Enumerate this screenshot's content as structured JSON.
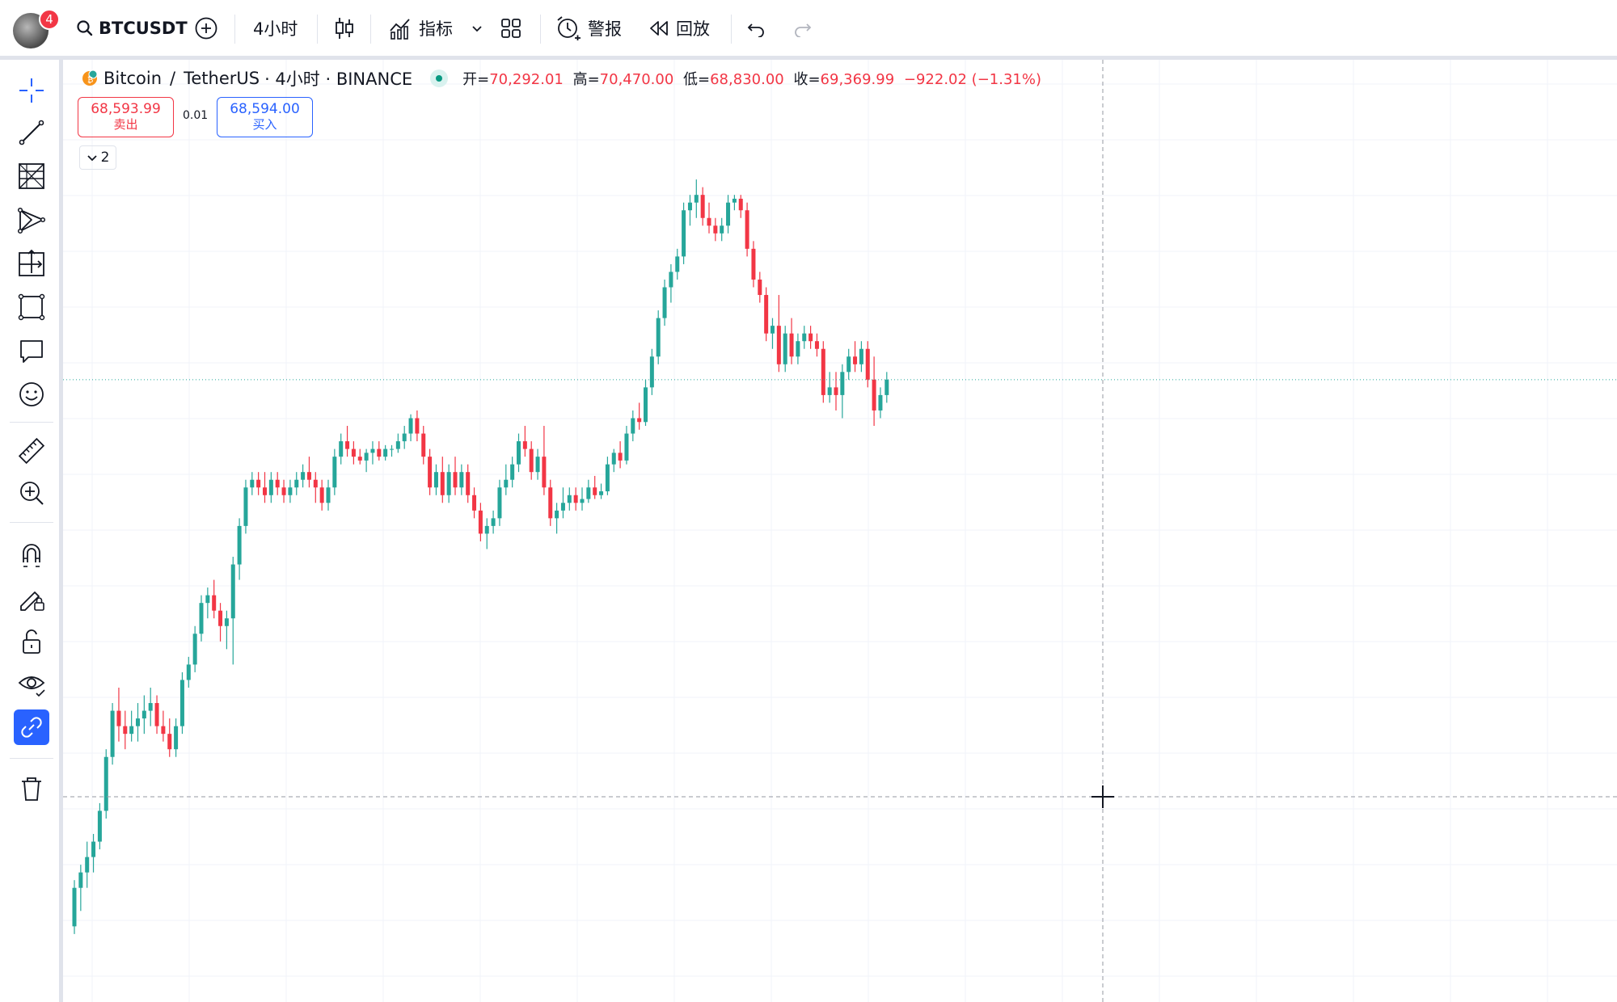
{
  "topbar": {
    "notification_count": "4",
    "symbol": "BTCUSDT",
    "interval": "4小时",
    "indicators_label": "指标",
    "alerts_label": "警报",
    "replay_label": "回放"
  },
  "legend": {
    "base": "Bitcoin",
    "slash": "/",
    "quote": "TetherUS",
    "interval_exchange": "· 4小时 · BINANCE",
    "open_label": "开=",
    "open": "70,292.01",
    "high_label": "高=",
    "high": "70,470.00",
    "low_label": "低=",
    "low": "68,830.00",
    "close_label": "收=",
    "close": "69,369.99",
    "change": "−922.02 (−1.31%)"
  },
  "trade": {
    "sell_price": "68,593.99",
    "sell_label": "卖出",
    "spread": "0.01",
    "buy_price": "68,594.00",
    "buy_label": "买入"
  },
  "indicators_collapsed_count": "2",
  "colors": {
    "up": "#26a69a",
    "down": "#f23645",
    "accent": "#2962ff"
  },
  "left_tools": [
    "crosshair-icon",
    "trend-line-icon",
    "fib-retracement-icon",
    "pattern-icon",
    "prediction-icon",
    "geometric-shapes-icon",
    "annotation-icon",
    "emoji-icon",
    "ruler-icon",
    "zoom-in-icon",
    "magnet-icon",
    "lock-drawing-icon",
    "lock-all-icon",
    "eye-icon",
    "link-icon",
    "trash-icon"
  ],
  "chart_data": {
    "type": "candlestick",
    "candles": [
      [
        65800,
        66400,
        65700,
        66300
      ],
      [
        66300,
        66600,
        66000,
        66500
      ],
      [
        66500,
        66900,
        66300,
        66700
      ],
      [
        66700,
        67000,
        66500,
        66900
      ],
      [
        66900,
        67400,
        66800,
        67300
      ],
      [
        67300,
        68100,
        67200,
        68000
      ],
      [
        68000,
        68700,
        67900,
        68600
      ],
      [
        68600,
        68900,
        68200,
        68400
      ],
      [
        68400,
        68600,
        68100,
        68300
      ],
      [
        68300,
        68600,
        68200,
        68400
      ],
      [
        68400,
        68700,
        68200,
        68500
      ],
      [
        68500,
        68800,
        68300,
        68600
      ],
      [
        68600,
        68900,
        68400,
        68700
      ],
      [
        68700,
        68800,
        68300,
        68400
      ],
      [
        68400,
        68600,
        68200,
        68300
      ],
      [
        68300,
        68500,
        68000,
        68100
      ],
      [
        68100,
        68500,
        68000,
        68400
      ],
      [
        68400,
        69100,
        68300,
        69000
      ],
      [
        69000,
        69300,
        68900,
        69200
      ],
      [
        69200,
        69700,
        69100,
        69600
      ],
      [
        69600,
        70100,
        69500,
        70000
      ],
      [
        70000,
        70200,
        69800,
        70100
      ],
      [
        70100,
        70300,
        69800,
        69900
      ],
      [
        69900,
        70000,
        69500,
        69700
      ],
      [
        69700,
        69900,
        69400,
        69800
      ],
      [
        69800,
        70600,
        69200,
        70500
      ],
      [
        70500,
        71100,
        70300,
        71000
      ],
      [
        71000,
        71600,
        70900,
        71500
      ],
      [
        71500,
        71700,
        71400,
        71600
      ],
      [
        71600,
        71700,
        71400,
        71500
      ],
      [
        71500,
        71700,
        71300,
        71400
      ],
      [
        71400,
        71700,
        71300,
        71600
      ],
      [
        71600,
        71700,
        71400,
        71500
      ],
      [
        71500,
        71600,
        71300,
        71400
      ],
      [
        71400,
        71600,
        71300,
        71500
      ],
      [
        71500,
        71700,
        71400,
        71600
      ],
      [
        71600,
        71800,
        71500,
        71700
      ],
      [
        71700,
        71900,
        71500,
        71600
      ],
      [
        71600,
        71700,
        71300,
        71500
      ],
      [
        71500,
        71600,
        71200,
        71300
      ],
      [
        71300,
        71600,
        71200,
        71500
      ],
      [
        71500,
        72000,
        71400,
        71900
      ],
      [
        71900,
        72200,
        71800,
        72100
      ],
      [
        72100,
        72300,
        71900,
        72000
      ],
      [
        72000,
        72100,
        71800,
        71900
      ],
      [
        71900,
        72000,
        71800,
        71850
      ],
      [
        71850,
        72000,
        71700,
        71950
      ],
      [
        71950,
        72100,
        71800,
        72000
      ],
      [
        72000,
        72100,
        71850,
        71900
      ],
      [
        71900,
        72050,
        71850,
        72000
      ],
      [
        72000,
        72050,
        71900,
        72000
      ],
      [
        72000,
        72200,
        71950,
        72100
      ],
      [
        72100,
        72300,
        72000,
        72200
      ],
      [
        72200,
        72450,
        72100,
        72400
      ],
      [
        72400,
        72500,
        72100,
        72200
      ],
      [
        72200,
        72300,
        71800,
        71900
      ],
      [
        71900,
        72000,
        71400,
        71500
      ],
      [
        71500,
        71800,
        71400,
        71700
      ],
      [
        71700,
        71900,
        71300,
        71400
      ],
      [
        71400,
        71800,
        71300,
        71700
      ],
      [
        71700,
        71900,
        71400,
        71500
      ],
      [
        71500,
        71800,
        71400,
        71700
      ],
      [
        71700,
        71800,
        71300,
        71400
      ],
      [
        71400,
        71500,
        71100,
        71200
      ],
      [
        71200,
        71300,
        70800,
        70900
      ],
      [
        70900,
        71100,
        70700,
        71000
      ],
      [
        71000,
        71200,
        70900,
        71100
      ],
      [
        71100,
        71600,
        71000,
        71500
      ],
      [
        71500,
        71800,
        71400,
        71600
      ],
      [
        71600,
        71900,
        71500,
        71800
      ],
      [
        71800,
        72200,
        71700,
        72100
      ],
      [
        72100,
        72300,
        71900,
        72000
      ],
      [
        72000,
        72100,
        71600,
        71700
      ],
      [
        71700,
        72000,
        71600,
        71900
      ],
      [
        71900,
        72300,
        71400,
        71500
      ],
      [
        71500,
        71600,
        71000,
        71100
      ],
      [
        71100,
        71300,
        70900,
        71200
      ],
      [
        71200,
        71500,
        71100,
        71300
      ],
      [
        71300,
        71500,
        71200,
        71400
      ],
      [
        71400,
        71500,
        71200,
        71300
      ],
      [
        71300,
        71500,
        71200,
        71350
      ],
      [
        71350,
        71600,
        71300,
        71500
      ],
      [
        71500,
        71650,
        71350,
        71400
      ],
      [
        71400,
        71550,
        71350,
        71450
      ],
      [
        71450,
        71900,
        71400,
        71800
      ],
      [
        71800,
        72000,
        71700,
        71950
      ],
      [
        71950,
        72100,
        71750,
        71850
      ],
      [
        71850,
        72300,
        71800,
        72200
      ],
      [
        72200,
        72500,
        72100,
        72400
      ],
      [
        72400,
        72600,
        72250,
        72350
      ],
      [
        72350,
        72900,
        72300,
        72800
      ],
      [
        72800,
        73300,
        72700,
        73200
      ],
      [
        73200,
        73800,
        73100,
        73700
      ],
      [
        73700,
        74200,
        73600,
        74100
      ],
      [
        74100,
        74400,
        73900,
        74300
      ],
      [
        74300,
        74600,
        74200,
        74500
      ],
      [
        74500,
        75200,
        74400,
        75100
      ],
      [
        75100,
        75300,
        74900,
        75200
      ],
      [
        75200,
        75500,
        75000,
        75300
      ],
      [
        75300,
        75400,
        74900,
        75000
      ],
      [
        75000,
        75200,
        74800,
        74900
      ],
      [
        74900,
        75000,
        74700,
        74800
      ],
      [
        74800,
        75000,
        74700,
        74900
      ],
      [
        74900,
        75300,
        74800,
        75200
      ],
      [
        75200,
        75300,
        75100,
        75250
      ],
      [
        75250,
        75300,
        75000,
        75100
      ],
      [
        75100,
        75200,
        74500,
        74600
      ],
      [
        74600,
        74700,
        74100,
        74200
      ],
      [
        74200,
        74300,
        73900,
        74000
      ],
      [
        74000,
        74100,
        73400,
        73500
      ],
      [
        73500,
        73700,
        73300,
        73600
      ],
      [
        73600,
        74000,
        73000,
        73100
      ],
      [
        73100,
        73600,
        73000,
        73500
      ],
      [
        73500,
        73700,
        73100,
        73200
      ],
      [
        73200,
        73500,
        73100,
        73400
      ],
      [
        73400,
        73600,
        73300,
        73500
      ],
      [
        73500,
        73600,
        73300,
        73400
      ],
      [
        73400,
        73500,
        73200,
        73300
      ],
      [
        73300,
        73400,
        72600,
        72700
      ],
      [
        72700,
        73000,
        72600,
        72800
      ],
      [
        72800,
        73000,
        72500,
        72700
      ],
      [
        72700,
        73100,
        72400,
        73000
      ],
      [
        73000,
        73300,
        72900,
        73200
      ],
      [
        73200,
        73400,
        73000,
        73100
      ],
      [
        73100,
        73400,
        73000,
        73300
      ],
      [
        73300,
        73400,
        72800,
        72900
      ],
      [
        72900,
        73200,
        72300,
        72500
      ],
      [
        72500,
        72800,
        72400,
        72700
      ],
      [
        72700,
        73000,
        72600,
        72900
      ]
    ],
    "price_range": [
      65300,
      75900
    ],
    "grid": true,
    "crosshair": true
  }
}
